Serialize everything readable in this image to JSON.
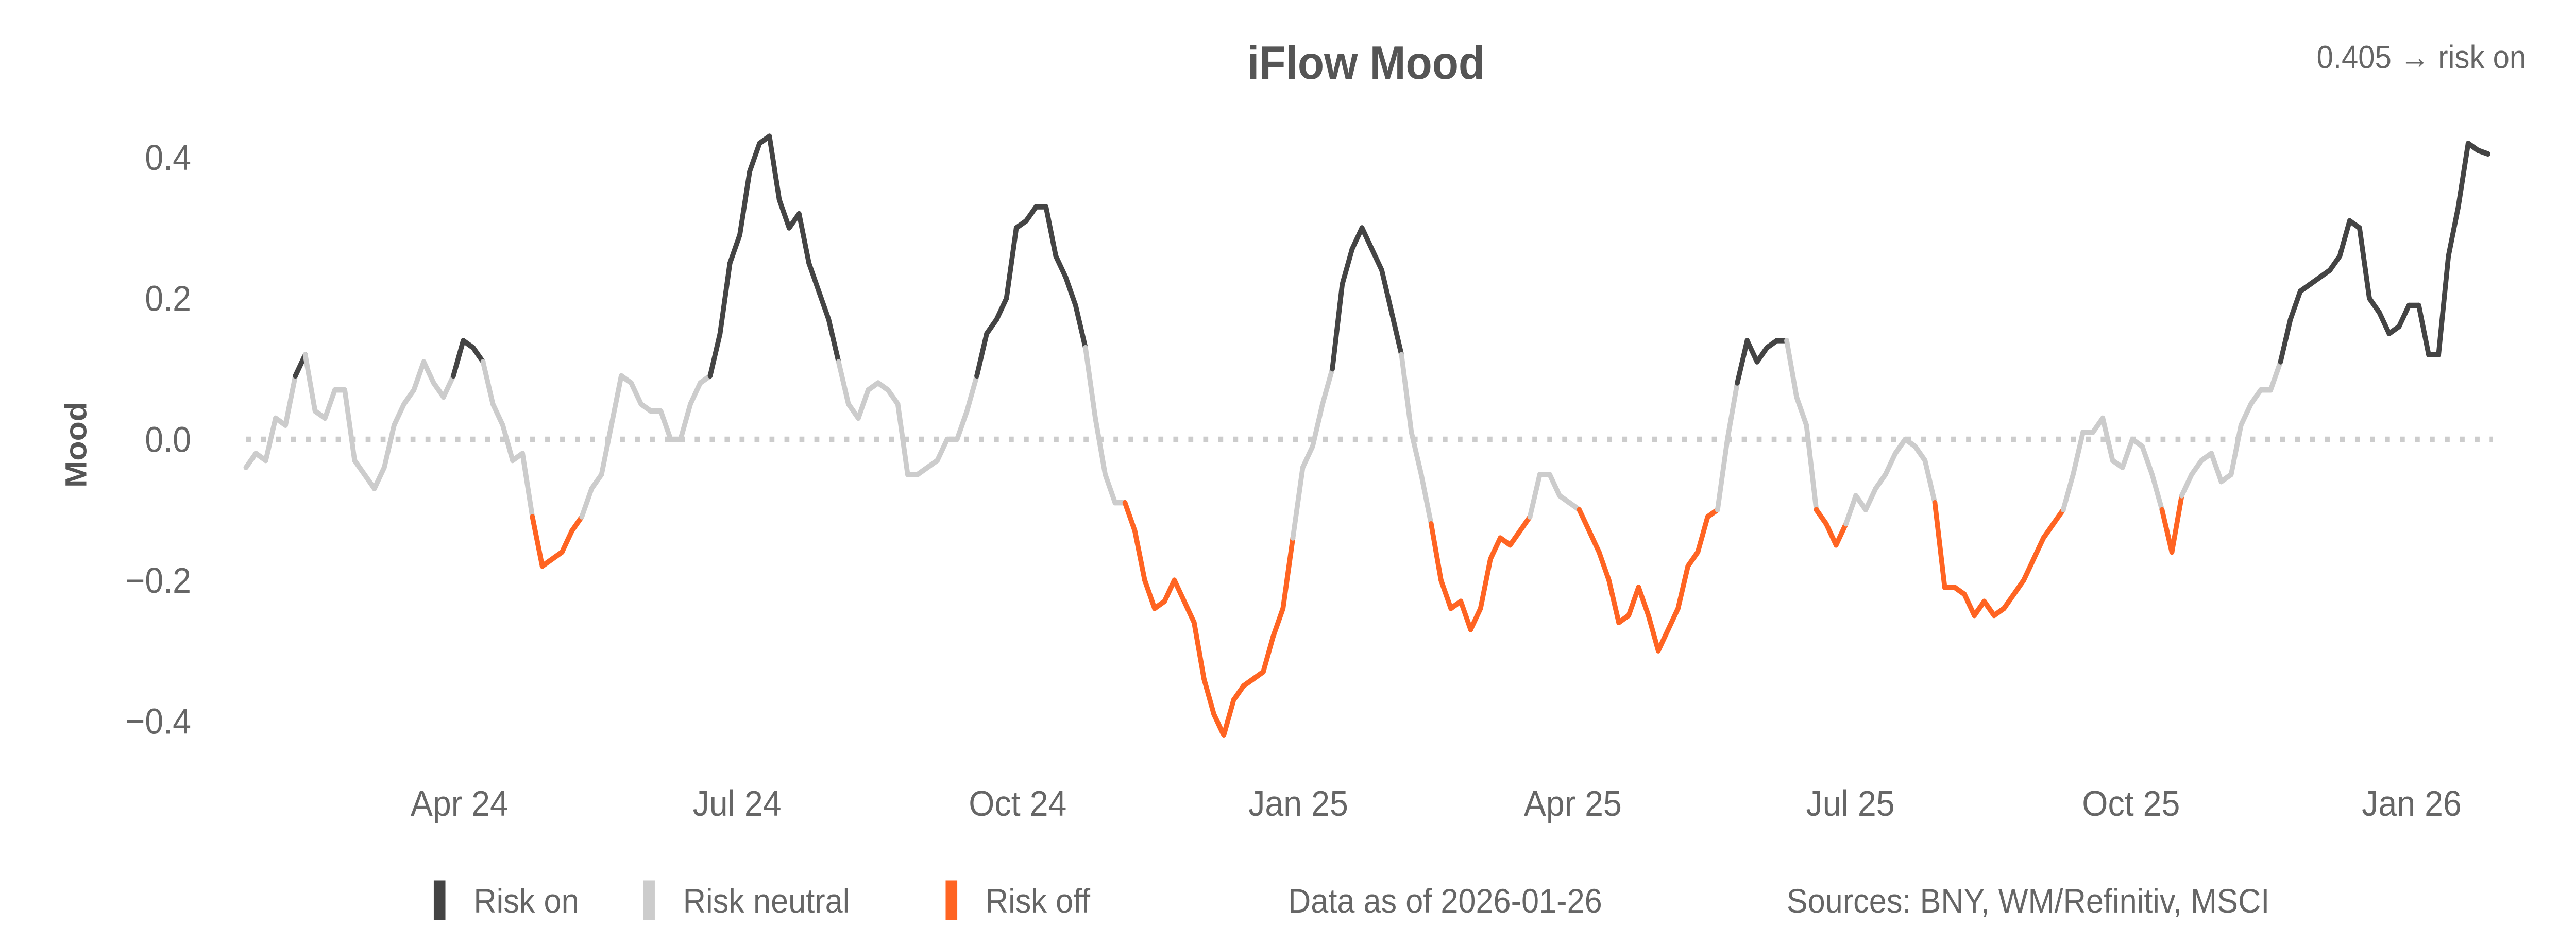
{
  "chart_data": {
    "type": "line",
    "title": "iFlow Mood",
    "ylabel": "Mood",
    "xlabel": "",
    "ylim": [
      -0.45,
      0.45
    ],
    "yticks": [
      0.4,
      0.2,
      0.0,
      -0.2,
      -0.4
    ],
    "ytick_labels": [
      "0.4",
      "0.2",
      "0.0",
      "−0.2",
      "−0.4"
    ],
    "xticks": [
      {
        "date": "2024-04-01",
        "label": "Apr 24"
      },
      {
        "date": "2024-07-01",
        "label": "Jul 24"
      },
      {
        "date": "2024-10-01",
        "label": "Oct 24"
      },
      {
        "date": "2025-01-01",
        "label": "Jan 25"
      },
      {
        "date": "2025-04-01",
        "label": "Apr 25"
      },
      {
        "date": "2025-07-01",
        "label": "Jul 25"
      },
      {
        "date": "2025-10-01",
        "label": "Oct 25"
      },
      {
        "date": "2026-01-01",
        "label": "Jan 26"
      }
    ],
    "start_date": "2024-01-22",
    "end_date": "2026-01-26",
    "thresholds": {
      "risk_on_above": 0.1,
      "risk_off_below": -0.1
    },
    "reference_line": 0.0,
    "values": [
      -0.04,
      -0.02,
      -0.03,
      0.03,
      0.02,
      0.09,
      0.12,
      0.04,
      0.03,
      0.07,
      0.07,
      -0.03,
      -0.05,
      -0.07,
      -0.04,
      0.02,
      0.05,
      0.07,
      0.11,
      0.08,
      0.06,
      0.09,
      0.14,
      0.13,
      0.11,
      0.05,
      0.02,
      -0.03,
      -0.02,
      -0.11,
      -0.18,
      -0.17,
      -0.16,
      -0.13,
      -0.11,
      -0.07,
      -0.05,
      0.02,
      0.09,
      0.08,
      0.05,
      0.04,
      0.04,
      0.0,
      0.0,
      0.05,
      0.08,
      0.09,
      0.15,
      0.25,
      0.29,
      0.38,
      0.42,
      0.43,
      0.34,
      0.3,
      0.32,
      0.25,
      0.21,
      0.17,
      0.11,
      0.05,
      0.03,
      0.07,
      0.08,
      0.07,
      0.05,
      -0.05,
      -0.05,
      -0.04,
      -0.03,
      0.0,
      0.0,
      0.04,
      0.09,
      0.15,
      0.17,
      0.2,
      0.3,
      0.31,
      0.33,
      0.33,
      0.26,
      0.23,
      0.19,
      0.13,
      0.03,
      -0.05,
      -0.09,
      -0.09,
      -0.13,
      -0.2,
      -0.24,
      -0.23,
      -0.2,
      -0.23,
      -0.26,
      -0.34,
      -0.39,
      -0.42,
      -0.37,
      -0.35,
      -0.34,
      -0.33,
      -0.28,
      -0.24,
      -0.14,
      -0.04,
      -0.01,
      0.05,
      0.1,
      0.22,
      0.27,
      0.3,
      0.27,
      0.24,
      0.18,
      0.12,
      0.01,
      -0.05,
      -0.12,
      -0.2,
      -0.24,
      -0.23,
      -0.27,
      -0.24,
      -0.17,
      -0.14,
      -0.15,
      -0.13,
      -0.11,
      -0.05,
      -0.05,
      -0.08,
      -0.09,
      -0.1,
      -0.13,
      -0.16,
      -0.2,
      -0.26,
      -0.25,
      -0.21,
      -0.25,
      -0.3,
      -0.27,
      -0.24,
      -0.18,
      -0.16,
      -0.11,
      -0.1,
      0.0,
      0.08,
      0.14,
      0.11,
      0.13,
      0.14,
      0.14,
      0.06,
      0.02,
      -0.1,
      -0.12,
      -0.15,
      -0.12,
      -0.08,
      -0.1,
      -0.07,
      -0.05,
      -0.02,
      0.0,
      -0.01,
      -0.03,
      -0.09,
      -0.21,
      -0.21,
      -0.22,
      -0.25,
      -0.23,
      -0.25,
      -0.24,
      -0.22,
      -0.2,
      -0.17,
      -0.14,
      -0.12,
      -0.1,
      -0.05,
      0.01,
      0.01,
      0.03,
      -0.03,
      -0.04,
      0.0,
      -0.01,
      -0.05,
      -0.1,
      -0.16,
      -0.08,
      -0.05,
      -0.03,
      -0.02,
      -0.06,
      -0.05,
      0.02,
      0.05,
      0.07,
      0.07,
      0.11,
      0.17,
      0.21,
      0.22,
      0.23,
      0.24,
      0.26,
      0.31,
      0.3,
      0.2,
      0.18,
      0.15,
      0.16,
      0.19,
      0.19,
      0.12,
      0.12,
      0.26,
      0.33,
      0.42,
      0.41,
      0.405
    ],
    "legend": [
      {
        "label": "Risk on",
        "color": "#444444"
      },
      {
        "label": "Risk neutral",
        "color": "#cccccc"
      },
      {
        "label": "Risk off",
        "color": "#ff6422"
      }
    ],
    "legend_placement": "bottom"
  },
  "status": {
    "text": "0.405 → risk on"
  },
  "footer": {
    "data_as_of": "Data as of 2026-01-26",
    "sources": "Sources:  BNY, WM/Refinitiv, MSCI"
  },
  "colors": {
    "zero_line": "#cccccc",
    "text": "#666666"
  }
}
